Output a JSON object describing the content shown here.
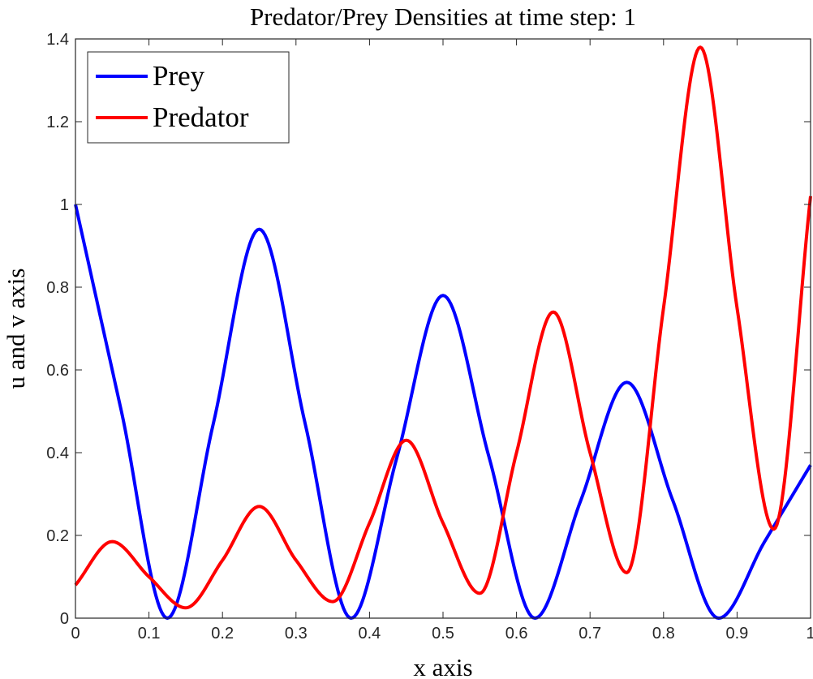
{
  "chart_data": {
    "type": "line",
    "title": "Predator/Prey Densities at time step: 1",
    "xlabel": "x axis",
    "ylabel": "u and v axis",
    "xlim": [
      0,
      1
    ],
    "ylim": [
      0,
      1.4
    ],
    "xticks": [
      "0",
      "0.1",
      "0.2",
      "0.3",
      "0.4",
      "0.5",
      "0.6",
      "0.7",
      "0.8",
      "0.9",
      "1"
    ],
    "yticks": [
      "0",
      "0.2",
      "0.4",
      "0.6",
      "0.8",
      "1",
      "1.2",
      "1.4"
    ],
    "grid": false,
    "legend_position": "top-left",
    "series": [
      {
        "name": "Prey",
        "color": "#0000ff",
        "x": [
          0,
          0.0625,
          0.125,
          0.1875,
          0.25,
          0.3125,
          0.375,
          0.4375,
          0.5,
          0.5625,
          0.625,
          0.6875,
          0.75,
          0.8125,
          0.875,
          0.9375,
          1
        ],
        "values": [
          1.0,
          0.5,
          0.0,
          0.47,
          0.94,
          0.47,
          0.0,
          0.39,
          0.78,
          0.39,
          0.0,
          0.285,
          0.57,
          0.285,
          0.0,
          0.185,
          0.37
        ]
      },
      {
        "name": "Predator",
        "color": "#ff0000",
        "x": [
          0,
          0.05,
          0.1,
          0.15,
          0.2,
          0.25,
          0.3,
          0.35,
          0.4,
          0.45,
          0.5,
          0.55,
          0.6,
          0.65,
          0.7,
          0.75,
          0.8,
          0.85,
          0.9,
          0.95,
          1
        ],
        "values": [
          0.08,
          0.185,
          0.1,
          0.025,
          0.14,
          0.27,
          0.14,
          0.04,
          0.23,
          0.43,
          0.23,
          0.06,
          0.4,
          0.74,
          0.4,
          0.11,
          0.75,
          1.38,
          0.75,
          0.215,
          1.02
        ]
      }
    ]
  }
}
